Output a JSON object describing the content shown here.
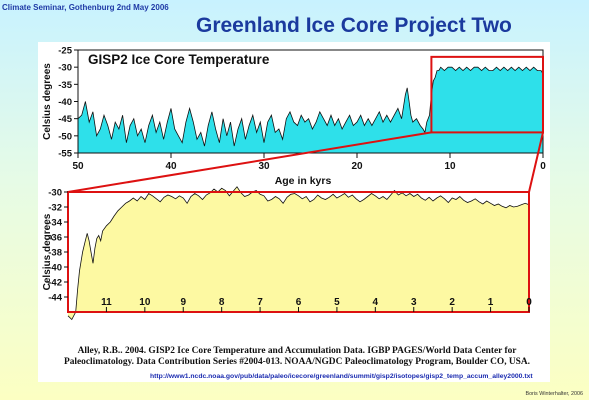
{
  "slide": {
    "header_left": "Climate Seminar, Gothenburg 2nd May 2006",
    "title": "Greenland Ice Core Project Two",
    "source_line1": "Alley, R.B..  2004.  GISP2 Ice Core Temperature and Accumulation Data. IGBP PAGES/World Data Center for",
    "source_line2": "Paleoclimatology. Data Contribution Series #2004-013.  NOAA/NGDC Paleoclimatology Program, Boulder CO, USA.",
    "url": "http://www1.ncdc.noaa.gov/pub/data/paleo/icecore/greenland/summit/gisp2/isotopes/gisp2_temp_accum_alley2000.txt",
    "footer_right": "Boris Winterhalter, 2006"
  },
  "colors": {
    "top_fill": "#2ee0ea",
    "bottom_fill": "#fdf9a2",
    "highlight": "#dd1111",
    "title_blue": "#1b3a9e"
  },
  "chart_data": [
    {
      "type": "area",
      "title": "GISP2 Ice Core Temperature",
      "xlabel": "Age in kyrs",
      "ylabel": "Celsius degrees",
      "xlim": [
        50,
        0
      ],
      "ylim": [
        -55,
        -25
      ],
      "x_ticks": [
        50,
        40,
        30,
        20,
        10,
        0
      ],
      "y_ticks": [
        -25,
        -30,
        -35,
        -40,
        -45,
        -50,
        -55
      ],
      "grid": false,
      "highlight_box": {
        "x": [
          12,
          0
        ],
        "y": [
          -49,
          -27
        ]
      },
      "x": [
        50.0,
        49.6,
        49.2,
        48.8,
        48.4,
        48.0,
        47.6,
        47.2,
        46.8,
        46.4,
        46.0,
        45.6,
        45.2,
        44.8,
        44.4,
        44.0,
        43.6,
        43.2,
        42.8,
        42.4,
        42.0,
        41.6,
        41.2,
        40.8,
        40.4,
        40.0,
        39.6,
        39.2,
        38.8,
        38.4,
        38.0,
        37.6,
        37.2,
        36.8,
        36.4,
        36.0,
        35.6,
        35.2,
        34.8,
        34.4,
        34.0,
        33.6,
        33.2,
        32.8,
        32.4,
        32.0,
        31.6,
        31.2,
        30.8,
        30.4,
        30.0,
        29.6,
        29.2,
        28.8,
        28.4,
        28.0,
        27.6,
        27.2,
        26.8,
        26.4,
        26.0,
        25.6,
        25.2,
        24.8,
        24.4,
        24.0,
        23.6,
        23.2,
        22.8,
        22.4,
        22.0,
        21.6,
        21.2,
        20.8,
        20.4,
        20.0,
        19.6,
        19.2,
        18.8,
        18.4,
        18.0,
        17.6,
        17.2,
        16.8,
        16.4,
        16.0,
        15.6,
        15.2,
        14.8,
        14.6,
        14.4,
        14.2,
        14.0,
        13.6,
        13.2,
        12.9,
        12.7,
        12.5,
        12.2,
        12.0,
        11.8,
        11.6,
        11.4,
        11.2,
        11.0,
        10.6,
        10.2,
        9.8,
        9.4,
        9.0,
        8.6,
        8.2,
        7.8,
        7.4,
        7.0,
        6.6,
        6.2,
        5.8,
        5.4,
        5.0,
        4.6,
        4.2,
        3.8,
        3.4,
        3.0,
        2.6,
        2.2,
        1.8,
        1.4,
        1.0,
        0.6,
        0.2,
        0.0
      ],
      "values": [
        -45,
        -44,
        -40,
        -46,
        -43,
        -50,
        -48,
        -44,
        -47,
        -51,
        -46,
        -48,
        -44,
        -52,
        -47,
        -45,
        -50,
        -48,
        -52,
        -47,
        -44,
        -49,
        -46,
        -51,
        -46,
        -42,
        -48,
        -50,
        -52,
        -46,
        -42,
        -46,
        -51,
        -49,
        -53,
        -47,
        -43,
        -48,
        -52,
        -45,
        -50,
        -46,
        -53,
        -48,
        -45,
        -51,
        -47,
        -44,
        -49,
        -46,
        -52,
        -46,
        -44,
        -49,
        -48,
        -51,
        -45,
        -43,
        -46,
        -47,
        -44,
        -46,
        -45,
        -48,
        -46,
        -43,
        -45,
        -47,
        -44,
        -47,
        -45,
        -48,
        -46,
        -44,
        -47,
        -46,
        -44,
        -47,
        -45,
        -47,
        -45,
        -43,
        -46,
        -44,
        -46,
        -44,
        -42,
        -45,
        -38,
        -36,
        -40,
        -44,
        -46,
        -45,
        -47,
        -48,
        -49,
        -46,
        -44,
        -38,
        -34,
        -33,
        -31,
        -31,
        -30,
        -31,
        -30,
        -30,
        -31,
        -30,
        -31,
        -30,
        -31,
        -30,
        -30,
        -31,
        -30,
        -31,
        -31,
        -30,
        -31,
        -30,
        -31,
        -30,
        -31,
        -30,
        -31,
        -30,
        -31,
        -30,
        -31,
        -31,
        -32
      ]
    },
    {
      "type": "area",
      "title": "",
      "xlabel": "",
      "ylabel": "Celsius degrees",
      "xlim": [
        12,
        0
      ],
      "ylim": [
        -46,
        -30
      ],
      "x_ticks": [
        11,
        10,
        9,
        8,
        7,
        6,
        5,
        4,
        3,
        2,
        1,
        0
      ],
      "y_ticks": [
        -30,
        -32,
        -34,
        -36,
        -38,
        -40,
        -42,
        -44
      ],
      "grid": false,
      "x": [
        12.0,
        11.9,
        11.8,
        11.75,
        11.7,
        11.62,
        11.55,
        11.5,
        11.45,
        11.4,
        11.35,
        11.3,
        11.25,
        11.2,
        11.15,
        11.1,
        11.0,
        10.9,
        10.8,
        10.7,
        10.6,
        10.5,
        10.4,
        10.3,
        10.2,
        10.1,
        10.0,
        9.9,
        9.8,
        9.7,
        9.6,
        9.5,
        9.4,
        9.3,
        9.2,
        9.1,
        9.0,
        8.9,
        8.8,
        8.7,
        8.6,
        8.5,
        8.4,
        8.3,
        8.2,
        8.1,
        8.0,
        7.9,
        7.8,
        7.7,
        7.6,
        7.5,
        7.4,
        7.3,
        7.2,
        7.1,
        7.0,
        6.9,
        6.8,
        6.7,
        6.6,
        6.5,
        6.4,
        6.3,
        6.2,
        6.1,
        6.0,
        5.9,
        5.8,
        5.7,
        5.6,
        5.5,
        5.4,
        5.3,
        5.2,
        5.1,
        5.0,
        4.9,
        4.8,
        4.7,
        4.6,
        4.5,
        4.4,
        4.3,
        4.2,
        4.1,
        4.0,
        3.9,
        3.8,
        3.7,
        3.6,
        3.5,
        3.4,
        3.3,
        3.2,
        3.1,
        3.0,
        2.9,
        2.8,
        2.7,
        2.6,
        2.5,
        2.4,
        2.3,
        2.2,
        2.1,
        2.0,
        1.9,
        1.8,
        1.7,
        1.6,
        1.5,
        1.4,
        1.3,
        1.2,
        1.1,
        1.0,
        0.9,
        0.8,
        0.7,
        0.6,
        0.5,
        0.4,
        0.3,
        0.2,
        0.1,
        0.0
      ],
      "values": [
        -46.5,
        -47.0,
        -46.0,
        -43.0,
        -40.5,
        -38.0,
        -36.5,
        -35.5,
        -36.5,
        -38.0,
        -39.5,
        -37.5,
        -36.2,
        -35.8,
        -36.5,
        -35.2,
        -34.5,
        -34.0,
        -33.2,
        -32.5,
        -32.0,
        -31.5,
        -31.2,
        -30.8,
        -31.2,
        -30.6,
        -31.0,
        -30.2,
        -30.5,
        -30.9,
        -31.3,
        -30.7,
        -30.4,
        -30.6,
        -30.9,
        -30.5,
        -30.8,
        -31.5,
        -30.6,
        -30.2,
        -30.5,
        -31.0,
        -30.4,
        -30.1,
        -29.6,
        -30.0,
        -29.5,
        -29.8,
        -30.5,
        -29.9,
        -29.3,
        -30.1,
        -30.6,
        -30.4,
        -30.0,
        -29.8,
        -30.3,
        -30.5,
        -31.2,
        -31.0,
        -30.6,
        -30.9,
        -31.5,
        -30.7,
        -30.3,
        -30.2,
        -30.5,
        -30.9,
        -30.6,
        -31.3,
        -31.0,
        -30.4,
        -30.8,
        -31.0,
        -30.7,
        -30.3,
        -30.8,
        -30.5,
        -30.2,
        -30.7,
        -30.4,
        -30.9,
        -31.3,
        -31.0,
        -30.6,
        -30.2,
        -30.5,
        -30.9,
        -30.6,
        -31.0,
        -30.4,
        -29.8,
        -30.4,
        -30.1,
        -30.5,
        -30.2,
        -30.6,
        -30.3,
        -30.8,
        -31.1,
        -30.7,
        -31.2,
        -30.8,
        -30.5,
        -30.9,
        -31.4,
        -30.8,
        -31.0,
        -30.6,
        -31.1,
        -31.4,
        -31.2,
        -30.9,
        -31.3,
        -31.6,
        -31.2,
        -31.5,
        -31.8,
        -31.6,
        -31.9,
        -32.1,
        -31.8,
        -32.0,
        -31.9,
        -31.7,
        -31.5,
        -31.7
      ]
    }
  ]
}
